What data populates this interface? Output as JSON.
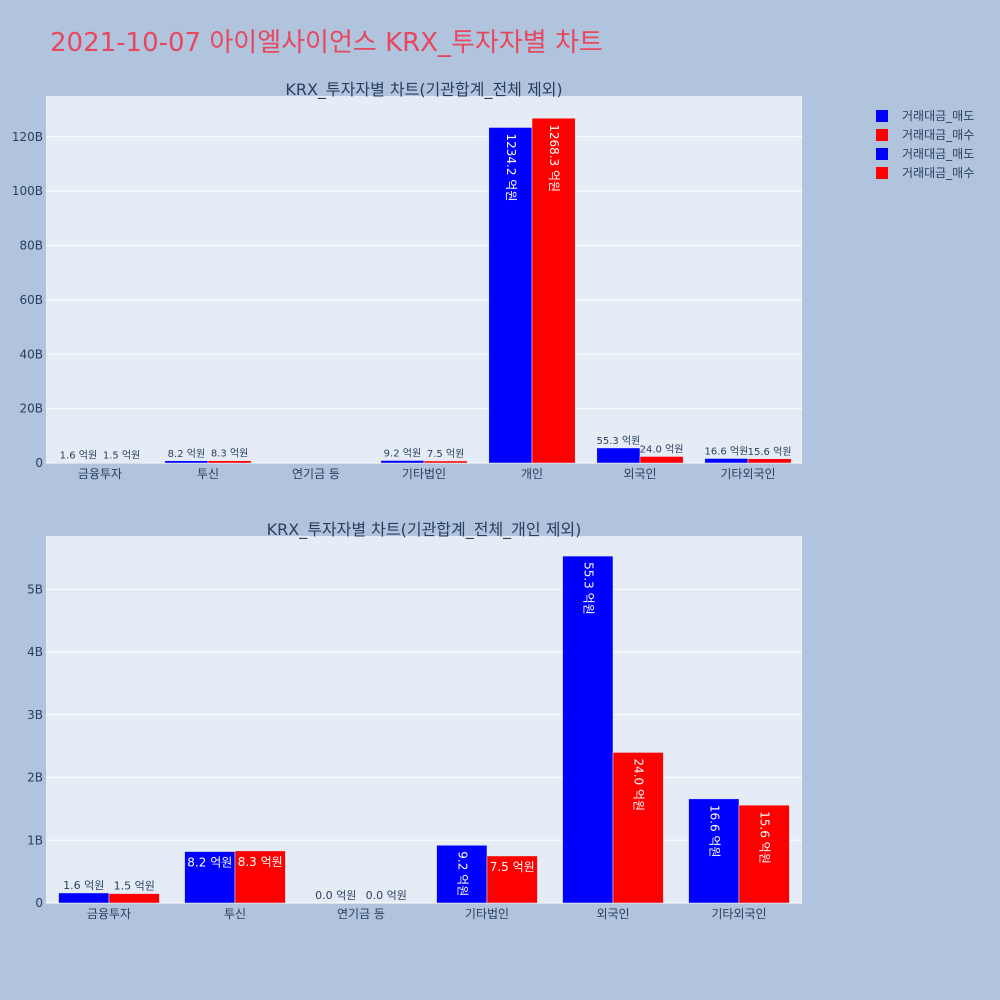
{
  "page": {
    "title": "2021-10-07 아이엘사이언스 KRX_투자자별 차트"
  },
  "colors": {
    "sell": "#0000ff",
    "buy": "#ff0000",
    "plot_bg": "#e5ecf6",
    "page_bg": "#b0c4de",
    "title": "#e8475f"
  },
  "legend": [
    {
      "label": "거래대금_매도",
      "color": "#0000ff"
    },
    {
      "label": "거래대금_매수",
      "color": "#ff0000"
    },
    {
      "label": "거래대금_매도",
      "color": "#0000ff"
    },
    {
      "label": "거래대금_매수",
      "color": "#ff0000"
    }
  ],
  "chart_data": [
    {
      "type": "bar",
      "title": "KRX_투자자별 차트(기관합계_전체 제외)",
      "categories": [
        "금융투자",
        "투신",
        "연기금 등",
        "기타법인",
        "개인",
        "외국인",
        "기타외국인"
      ],
      "series": [
        {
          "name": "거래대금_매도",
          "color": "#0000ff",
          "values": [
            160000000,
            820000000,
            0,
            920000000,
            123420000000,
            5530000000,
            1660000000
          ],
          "labels": [
            "1.6 억원",
            "8.2 억원",
            "",
            "9.2 억원",
            "1234.2 억원",
            "55.3 억원",
            "16.6 억원"
          ]
        },
        {
          "name": "거래대금_매수",
          "color": "#ff0000",
          "values": [
            150000000,
            830000000,
            0,
            750000000,
            126830000000,
            2400000000,
            1560000000
          ],
          "labels": [
            "1.5 억원",
            "8.3 억원",
            "",
            "7.5 억원",
            "1268.3 억원",
            "24.0 억원",
            "15.6 억원"
          ]
        }
      ],
      "ylim": [
        0,
        135000000000
      ],
      "yticks": [
        0,
        20000000000,
        40000000000,
        60000000000,
        80000000000,
        100000000000,
        120000000000
      ],
      "ytick_labels": [
        "0",
        "20B",
        "40B",
        "60B",
        "80B",
        "100B",
        "120B"
      ],
      "grid": true
    },
    {
      "type": "bar",
      "title": "KRX_투자자별 차트(기관합계_전체_개인 제외)",
      "categories": [
        "금융투자",
        "투신",
        "연기금 등",
        "기타법인",
        "외국인",
        "기타외국인"
      ],
      "series": [
        {
          "name": "거래대금_매도",
          "color": "#0000ff",
          "values": [
            160000000,
            820000000,
            0,
            920000000,
            5530000000,
            1660000000
          ],
          "labels": [
            "1.6 억원",
            "8.2 억원",
            "0.0 억원",
            "9.2 억원",
            "55.3 억원",
            "16.6 억원"
          ]
        },
        {
          "name": "거래대금_매수",
          "color": "#ff0000",
          "values": [
            150000000,
            830000000,
            0,
            750000000,
            2400000000,
            1560000000
          ],
          "labels": [
            "1.5 억원",
            "8.3 억원",
            "0.0 억원",
            "7.5 억원",
            "24.0 억원",
            "15.6 억원"
          ]
        }
      ],
      "ylim": [
        0,
        5850000000
      ],
      "yticks": [
        0,
        1000000000,
        2000000000,
        3000000000,
        4000000000,
        5000000000
      ],
      "ytick_labels": [
        "0",
        "1B",
        "2B",
        "3B",
        "4B",
        "5B"
      ],
      "grid": true
    }
  ]
}
